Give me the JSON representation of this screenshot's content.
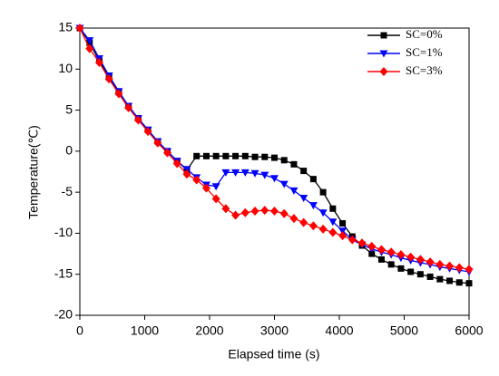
{
  "chart_data": {
    "type": "line",
    "x_label": "Elapsed time (s)",
    "y_label": "Temperature(℃)",
    "x": [
      0,
      150,
      300,
      450,
      600,
      750,
      900,
      1050,
      1200,
      1350,
      1500,
      1650,
      1800,
      1950,
      2100,
      2250,
      2400,
      2550,
      2700,
      2850,
      3000,
      3150,
      3300,
      3450,
      3600,
      3750,
      3900,
      4050,
      4200,
      4350,
      4500,
      4650,
      4800,
      4950,
      5100,
      5250,
      5400,
      5550,
      5700,
      5850,
      6000
    ],
    "series": [
      {
        "name": "SC=0%",
        "color": "#000000",
        "marker": "square",
        "values": [
          15,
          13.2,
          11,
          9,
          7.2,
          5.5,
          4,
          2.6,
          1.2,
          0,
          -1.2,
          -2.3,
          -0.6,
          -0.6,
          -0.6,
          -0.6,
          -0.6,
          -0.6,
          -0.7,
          -0.7,
          -0.8,
          -1.1,
          -1.6,
          -2.4,
          -3.4,
          -5,
          -7,
          -8.8,
          -10.4,
          -11.5,
          -12.5,
          -13.2,
          -13.8,
          -14.3,
          -14.7,
          -15,
          -15.3,
          -15.6,
          -15.8,
          -16,
          -16.1
        ]
      },
      {
        "name": "SC=1%",
        "color": "#0000ff",
        "marker": "triangle-down",
        "values": [
          15,
          13.5,
          11.3,
          9.2,
          7.3,
          5.5,
          4,
          2.6,
          1.2,
          0,
          -1.2,
          -2.2,
          -3.2,
          -4.1,
          -4.3,
          -2.6,
          -2.6,
          -2.6,
          -2.7,
          -2.9,
          -3.3,
          -4,
          -4.8,
          -5.7,
          -6.6,
          -7.5,
          -8.6,
          -9.7,
          -10.8,
          -11.4,
          -11.9,
          -12.3,
          -12.6,
          -13,
          -13.3,
          -13.6,
          -13.8,
          -14.1,
          -14.3,
          -14.5,
          -14.7
        ]
      },
      {
        "name": "SC=3%",
        "color": "#ff0000",
        "marker": "diamond",
        "values": [
          15,
          12.5,
          10.8,
          8.8,
          7,
          5.3,
          3.8,
          2.4,
          1,
          -0.2,
          -1.5,
          -2.8,
          -3.5,
          -4.5,
          -5.8,
          -7,
          -7.8,
          -7.5,
          -7.3,
          -7.2,
          -7.3,
          -7.6,
          -8.2,
          -8.7,
          -9.1,
          -9.5,
          -9.9,
          -10.3,
          -10.8,
          -11.2,
          -11.6,
          -12,
          -12.3,
          -12.6,
          -12.9,
          -13.2,
          -13.5,
          -13.8,
          -14,
          -14.2,
          -14.4
        ]
      }
    ],
    "xlim": [
      0,
      6000
    ],
    "xticks": [
      0,
      1000,
      2000,
      3000,
      4000,
      5000,
      6000
    ],
    "ylim": [
      -20,
      15
    ],
    "yticks": [
      -20,
      -15,
      -10,
      -5,
      0,
      5,
      10,
      15
    ],
    "legend": "top-right",
    "grid": false
  }
}
